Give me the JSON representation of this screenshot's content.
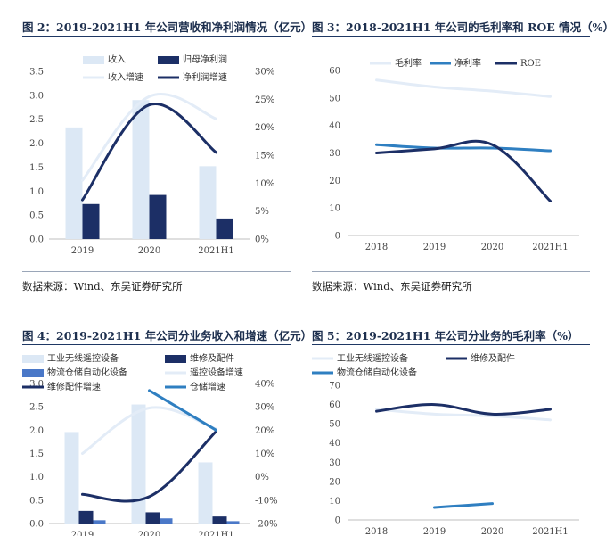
{
  "fig2": {
    "title": "图 2：2019-2021H1 年公司营收和净利润情况（亿元）",
    "source": "数据来源：Wind、东吴证券研究所"
  },
  "fig3": {
    "title": "图 3：2018-2021H1 年公司的毛利率和 ROE 情况（%）",
    "source": "数据来源：Wind、东吴证券研究所"
  },
  "fig4": {
    "title": "图 4：2019-2021H1 年公司分业务收入和增速（亿元）"
  },
  "fig5": {
    "title": "图 5：2019-2021H1 年公司分业务的毛利率（%）"
  },
  "colors": {
    "light_bar": "#dce8f5",
    "navy": "#1c2f66",
    "light_line": "#e3ecf7",
    "mid_blue": "#2f7fc1",
    "logistics_bar": "#4a78c8"
  },
  "chart_data": [
    {
      "id": "fig2",
      "type": "bar",
      "categories": [
        "2019",
        "2020",
        "2021H1"
      ],
      "y_left_ticks": [
        "0.0",
        "0.5",
        "1.0",
        "1.5",
        "2.0",
        "2.5",
        "3.0",
        "3.5"
      ],
      "y_right_ticks": [
        "0%",
        "5%",
        "10%",
        "15%",
        "20%",
        "25%",
        "30%"
      ],
      "ylim_left": [
        0,
        3.5
      ],
      "ylim_right": [
        0,
        30
      ],
      "series": [
        {
          "name": "收入",
          "kind": "bar",
          "axis": "left",
          "color": "#dce8f5",
          "values": [
            2.33,
            2.9,
            1.52
          ]
        },
        {
          "name": "归母净利润",
          "kind": "bar",
          "axis": "left",
          "color": "#1c2f66",
          "values": [
            0.73,
            0.92,
            0.43
          ]
        },
        {
          "name": "收入增速",
          "kind": "line",
          "axis": "right",
          "color": "#e3ecf7",
          "values": [
            10.5,
            25.5,
            21.5
          ]
        },
        {
          "name": "净利润增速",
          "kind": "line",
          "axis": "right",
          "color": "#1c2f66",
          "values": [
            7,
            24,
            15.5
          ]
        }
      ],
      "legend_position": "top-right"
    },
    {
      "id": "fig3",
      "type": "line",
      "categories": [
        "2018",
        "2019",
        "2020",
        "2021H1"
      ],
      "y_ticks": [
        "0",
        "10",
        "20",
        "30",
        "40",
        "50",
        "60"
      ],
      "ylim": [
        0,
        60
      ],
      "series": [
        {
          "name": "毛利率",
          "color": "#e3ecf7",
          "values": [
            56.5,
            54,
            52.5,
            50.5
          ]
        },
        {
          "name": "净利率",
          "color": "#2f7fc1",
          "values": [
            33,
            31.8,
            31.8,
            30.8
          ]
        },
        {
          "name": "ROE",
          "color": "#1c2f66",
          "values": [
            30,
            31.5,
            33,
            12.5
          ]
        }
      ],
      "legend_position": "top"
    },
    {
      "id": "fig4",
      "type": "bar",
      "categories": [
        "2019",
        "2020",
        "2021H1"
      ],
      "y_left_ticks": [
        "0.0",
        "0.5",
        "1.0",
        "1.5",
        "2.0",
        "2.5",
        "3.0"
      ],
      "y_right_ticks": [
        "-20%",
        "-10%",
        "0%",
        "10%",
        "20%",
        "30%",
        "40%"
      ],
      "ylim_left": [
        0,
        3.0
      ],
      "ylim_right": [
        -20,
        40
      ],
      "series": [
        {
          "name": "工业无线遥控设备",
          "kind": "bar",
          "axis": "left",
          "color": "#dce8f5",
          "values": [
            1.96,
            2.55,
            1.31
          ]
        },
        {
          "name": "维修及配件",
          "kind": "bar",
          "axis": "left",
          "color": "#1c2f66",
          "values": [
            0.27,
            0.24,
            0.15
          ]
        },
        {
          "name": "物流仓储自动化设备",
          "kind": "bar",
          "axis": "left",
          "color": "#4a78c8",
          "values": [
            0.07,
            0.11,
            0.05
          ]
        },
        {
          "name": "遥控设备增速",
          "kind": "line",
          "axis": "right",
          "color": "#e3ecf7",
          "values": [
            10,
            29.5,
            20.5
          ]
        },
        {
          "name": "维修配件增速",
          "kind": "line",
          "axis": "right",
          "color": "#1c2f66",
          "values": [
            -7.5,
            -8.5,
            19.5
          ]
        },
        {
          "name": "仓储增速",
          "kind": "line",
          "axis": "right",
          "color": "#2f7fc1",
          "values": [
            null,
            37,
            20
          ]
        }
      ],
      "legend_position": "top"
    },
    {
      "id": "fig5",
      "type": "line",
      "categories": [
        "2018",
        "2019",
        "2020",
        "2021H1"
      ],
      "y_ticks": [
        "0",
        "10",
        "20",
        "30",
        "40",
        "50",
        "60",
        "70"
      ],
      "ylim": [
        0,
        70
      ],
      "series": [
        {
          "name": "工业无线遥控设备",
          "color": "#e3ecf7",
          "values": [
            57.5,
            55,
            54,
            52
          ]
        },
        {
          "name": "维修及配件",
          "color": "#1c2f66",
          "values": [
            56.5,
            60,
            55,
            57.5
          ]
        },
        {
          "name": "物流仓储自动化设备",
          "color": "#2f7fc1",
          "values": [
            null,
            6.5,
            8.5,
            null
          ]
        }
      ],
      "legend_position": "top"
    }
  ]
}
